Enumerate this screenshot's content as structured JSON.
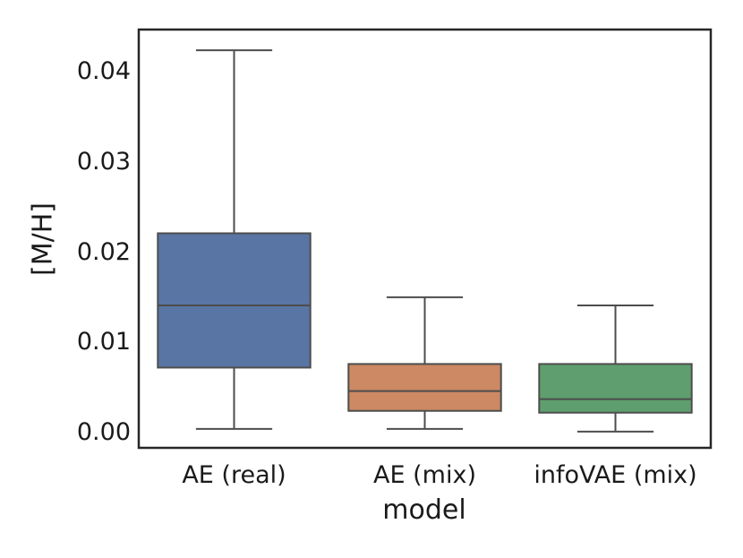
{
  "figure": {
    "background": "#ffffff",
    "text_color": "#1a1a1a",
    "spine_color": "#262626",
    "box_edge_color": "#4d4d4d"
  },
  "chart_data": {
    "type": "boxplot",
    "title": "",
    "xlabel": "model",
    "ylabel": "[M/H]",
    "categories": [
      "AE (real)",
      "AE (mix)",
      "infoVAE (mix)"
    ],
    "ytick_labels": [
      "0.00",
      "0.01",
      "0.02",
      "0.03",
      "0.04"
    ],
    "yticks": [
      0.0,
      0.01,
      0.02,
      0.03,
      0.04
    ],
    "ylim": [
      -0.0017,
      0.0447
    ],
    "grid": false,
    "legend": null,
    "box_width_frac": 0.8,
    "cap_width_frac": 0.4,
    "series": [
      {
        "name": "AE (real)",
        "whislo": 0.0004,
        "q1": 0.0072,
        "median": 0.0141,
        "q3": 0.0221,
        "whishi": 0.0424,
        "color": "#5975A4"
      },
      {
        "name": "AE (mix)",
        "whislo": 0.0004,
        "q1": 0.0024,
        "median": 0.0046,
        "q3": 0.0076,
        "whishi": 0.015,
        "color": "#CC8963"
      },
      {
        "name": "infoVAE (mix)",
        "whislo": 0.0001,
        "q1": 0.0022,
        "median": 0.0037,
        "q3": 0.0076,
        "whishi": 0.0141,
        "color": "#5F9E6E"
      }
    ]
  }
}
